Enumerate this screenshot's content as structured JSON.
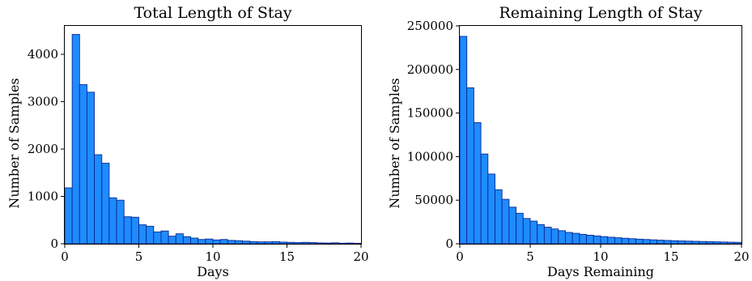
{
  "chart_data": [
    {
      "type": "bar",
      "title": "Total Length of Stay",
      "xlabel": "Days",
      "ylabel": "Number of Samples",
      "xlim": [
        0,
        20
      ],
      "ylim": [
        0,
        4600
      ],
      "xticks": [
        0,
        5,
        10,
        15,
        20
      ],
      "yticks": [
        0,
        1000,
        2000,
        3000,
        4000
      ],
      "bin_width": 0.5,
      "bin_start": 0,
      "values": [
        1180,
        4420,
        3360,
        3200,
        1880,
        1700,
        970,
        920,
        570,
        560,
        400,
        370,
        250,
        270,
        160,
        210,
        150,
        120,
        90,
        100,
        80,
        90,
        70,
        65,
        55,
        45,
        40,
        40,
        45,
        35,
        30,
        25,
        30,
        25,
        18,
        15,
        20,
        12,
        15,
        10
      ],
      "bar_color": "#1e8bff",
      "edge_color": "#0b2a8f",
      "grid": false
    },
    {
      "type": "bar",
      "title": "Remaining Length of Stay",
      "xlabel": "Days Remaining",
      "ylabel": "Number of Samples",
      "xlim": [
        0,
        20
      ],
      "ylim": [
        0,
        250000
      ],
      "xticks": [
        0,
        5,
        10,
        15,
        20
      ],
      "yticks": [
        0,
        50000,
        100000,
        150000,
        200000,
        250000
      ],
      "bin_width": 0.5,
      "bin_start": 0,
      "values": [
        238000,
        179000,
        139000,
        103000,
        80000,
        62000,
        51000,
        42000,
        35000,
        29000,
        26000,
        22000,
        19000,
        17000,
        15000,
        13000,
        12000,
        10800,
        9800,
        9000,
        8200,
        7500,
        6900,
        6300,
        5800,
        5300,
        4900,
        4500,
        4100,
        3800,
        3500,
        3200,
        3000,
        2800,
        2600,
        2400,
        2200,
        2000,
        1800,
        1600
      ],
      "bar_color": "#1e8bff",
      "edge_color": "#0b2a8f",
      "grid": false
    }
  ]
}
